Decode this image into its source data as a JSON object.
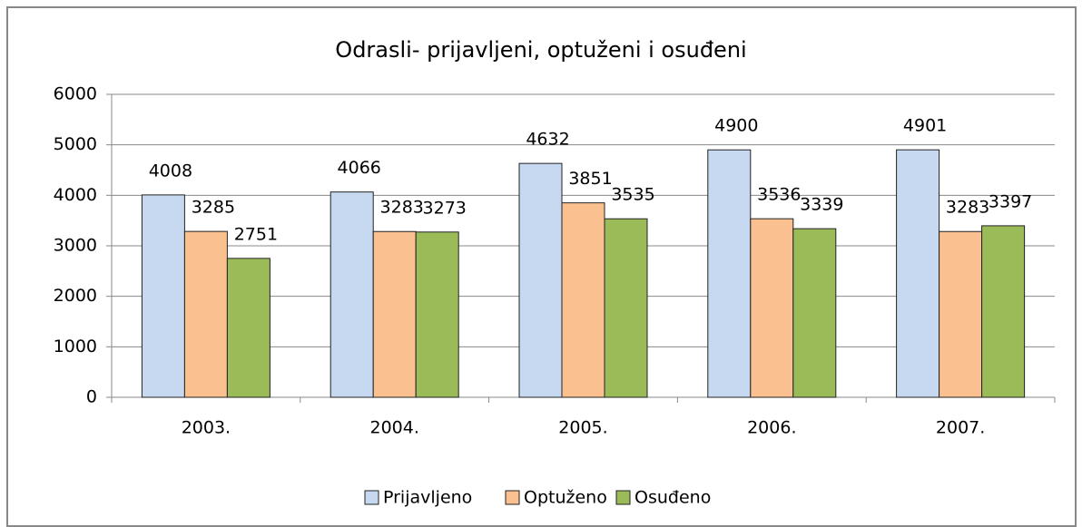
{
  "chart_data": {
    "type": "bar",
    "title": "Odrasli- prijavljeni, optuženi i osuđeni",
    "categories": [
      "2003.",
      "2004.",
      "2005.",
      "2006.",
      "2007."
    ],
    "series": [
      {
        "name": "Prijavljeno",
        "color": "#c6d9f1",
        "values": [
          4008,
          4066,
          4632,
          4900,
          4901
        ]
      },
      {
        "name": "Optuženo",
        "color": "#fac090",
        "values": [
          3285,
          3283,
          3851,
          3536,
          3283
        ]
      },
      {
        "name": "Osuđeno",
        "color": "#9bbb59",
        "values": [
          2751,
          3273,
          3535,
          3339,
          3397
        ]
      }
    ],
    "ylim": [
      0,
      6000
    ],
    "yticks": [
      0,
      1000,
      2000,
      3000,
      4000,
      5000,
      6000
    ],
    "grid": true,
    "legend": "bottom"
  }
}
